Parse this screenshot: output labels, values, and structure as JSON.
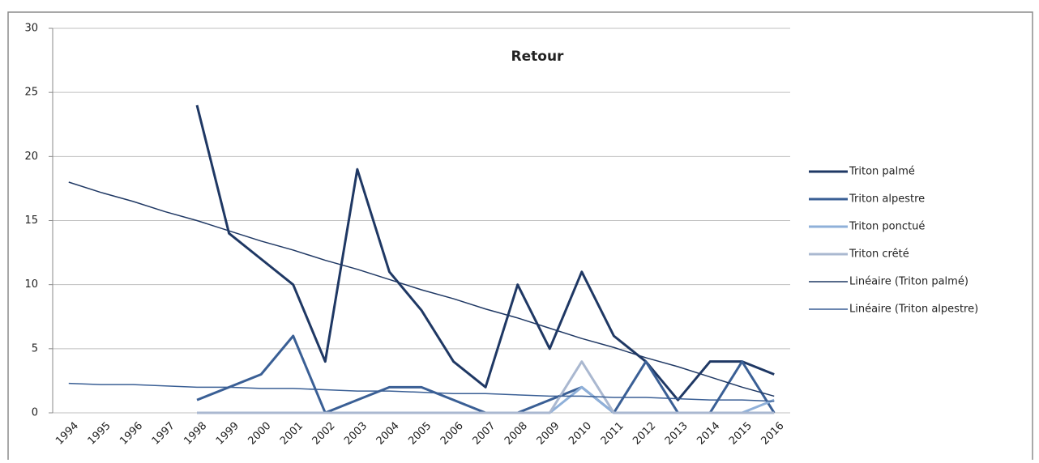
{
  "chart_data": {
    "type": "line",
    "title": "Retour",
    "categories": [
      "1994",
      "1995",
      "1996",
      "1997",
      "1998",
      "1999",
      "2000",
      "2001",
      "2002",
      "2003",
      "2004",
      "2005",
      "2006",
      "2007",
      "2008",
      "2009",
      "2010",
      "2011",
      "2012",
      "2013",
      "2014",
      "2015",
      "2016"
    ],
    "series": [
      {
        "name": "Triton palmé",
        "color": "#1f3864",
        "line_width": 3,
        "values": [
          null,
          null,
          null,
          null,
          24,
          14,
          12,
          10,
          4,
          19,
          11,
          8,
          4,
          2,
          10,
          5,
          11,
          6,
          4,
          1,
          4,
          4,
          3
        ]
      },
      {
        "name": "Triton alpestre",
        "color": "#3a5f95",
        "line_width": 3,
        "values": [
          null,
          null,
          null,
          null,
          1,
          2,
          3,
          6,
          0,
          1,
          2,
          2,
          1,
          0,
          0,
          1,
          2,
          0,
          4,
          0,
          0,
          4,
          0
        ]
      },
      {
        "name": "Triton ponctué",
        "color": "#8fb0d9",
        "line_width": 3,
        "values": [
          null,
          null,
          null,
          null,
          0,
          0,
          0,
          0,
          0,
          0,
          0,
          0,
          0,
          0,
          0,
          0,
          2,
          0,
          0,
          0,
          0,
          0,
          1
        ]
      },
      {
        "name": "Triton crêté",
        "color": "#aab8d0",
        "line_width": 3,
        "values": [
          null,
          null,
          null,
          null,
          0,
          0,
          0,
          0,
          0,
          0,
          0,
          0,
          0,
          0,
          0,
          0,
          4,
          0,
          0,
          0,
          0,
          0,
          0
        ]
      },
      {
        "name": "Linéaire (Triton palmé)",
        "color": "#1f3864",
        "line_width": 1.5,
        "values": [
          18,
          17.2,
          16.5,
          15.7,
          15,
          14.2,
          13.4,
          12.7,
          11.9,
          11.2,
          10.4,
          9.6,
          8.9,
          8.1,
          7.4,
          6.6,
          5.8,
          5.1,
          4.3,
          3.6,
          2.8,
          2,
          1.3
        ]
      },
      {
        "name": "Linéaire (Triton alpestre)",
        "color": "#3a5f95",
        "line_width": 1.5,
        "values": [
          2.3,
          2.2,
          2.2,
          2.1,
          2.0,
          2.0,
          1.9,
          1.9,
          1.8,
          1.7,
          1.7,
          1.6,
          1.5,
          1.5,
          1.4,
          1.3,
          1.3,
          1.2,
          1.2,
          1.1,
          1.0,
          1.0,
          0.9
        ]
      }
    ],
    "ylim": [
      0,
      30
    ],
    "yticks": [
      0,
      5,
      10,
      15,
      20,
      25,
      30
    ],
    "grid": true,
    "legend": "right"
  }
}
